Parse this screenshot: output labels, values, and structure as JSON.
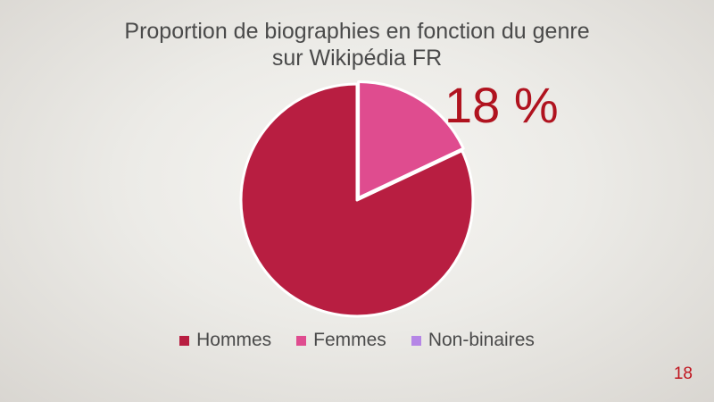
{
  "chart_data": {
    "type": "pie",
    "title_lines": [
      "Proportion de biographies en fonction du genre",
      "sur Wikipédia FR"
    ],
    "categories": [
      "Hommes",
      "Femmes",
      "Non-binaires"
    ],
    "values": [
      82,
      18,
      0
    ],
    "colors": [
      "#b81e41",
      "#df4c8f",
      "#b586e6"
    ],
    "annotation": "18 %",
    "legend_position": "bottom"
  },
  "page_number": "18"
}
